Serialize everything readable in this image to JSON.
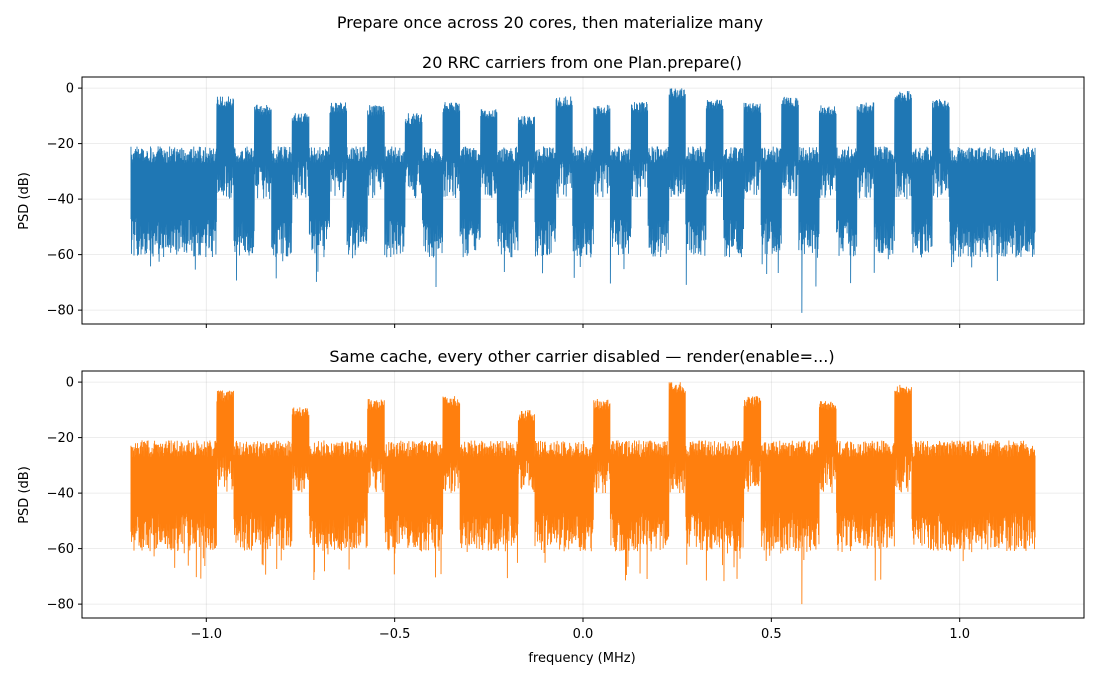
{
  "figure": {
    "suptitle": "Prepare once across 20 cores, then materialize many"
  },
  "chart_data": [
    {
      "type": "line",
      "title": "20 RRC carriers from one Plan.prepare()",
      "xlabel": "",
      "ylabel": "PSD (dB)",
      "xlim": [
        -1.33,
        1.33
      ],
      "ylim": [
        -85,
        4
      ],
      "xticks": [
        -1.0,
        -0.5,
        0.0,
        0.5,
        1.0
      ],
      "xtick_labels": [
        "",
        "",
        "",
        "",
        ""
      ],
      "yticks": [
        0,
        -20,
        -40,
        -60,
        -80
      ],
      "ytick_labels": [
        "0",
        "−20",
        "−40",
        "−60",
        "−80"
      ],
      "grid": true,
      "color": "#1f77b4",
      "series": [
        {
          "x_range_mhz": [
            -1.2,
            1.2
          ],
          "noise_floor_db_range": [
            -55,
            -23
          ],
          "carrier_centers_mhz": [
            -0.95,
            -0.85,
            -0.75,
            -0.65,
            -0.55,
            -0.45,
            -0.35,
            -0.25,
            -0.15,
            -0.05,
            0.05,
            0.15,
            0.25,
            0.35,
            0.45,
            0.55,
            0.65,
            0.75,
            0.85,
            0.95
          ],
          "carrier_peaks_db": [
            -3,
            -6,
            -9,
            -5,
            -6,
            -9,
            -5,
            -7,
            -10,
            -3,
            -6,
            -5,
            0,
            -4,
            -5,
            -3,
            -6,
            -5,
            -1,
            -4
          ],
          "carrier_width_mhz": 0.045,
          "min_dip_db": -81
        }
      ]
    },
    {
      "type": "line",
      "title": "Same cache, every other carrier disabled — render(enable=...)",
      "xlabel": "frequency (MHz)",
      "ylabel": "PSD (dB)",
      "xlim": [
        -1.33,
        1.33
      ],
      "ylim": [
        -85,
        4
      ],
      "xticks": [
        -1.0,
        -0.5,
        0.0,
        0.5,
        1.0
      ],
      "xtick_labels": [
        "−1.0",
        "−0.5",
        "0.0",
        "0.5",
        "1.0"
      ],
      "yticks": [
        0,
        -20,
        -40,
        -60,
        -80
      ],
      "ytick_labels": [
        "0",
        "−20",
        "−40",
        "−60",
        "−80"
      ],
      "grid": true,
      "color": "#ff7f0e",
      "series": [
        {
          "x_range_mhz": [
            -1.2,
            1.2
          ],
          "noise_floor_db_range": [
            -55,
            -23
          ],
          "carrier_centers_mhz": [
            -0.95,
            -0.75,
            -0.55,
            -0.35,
            -0.15,
            0.05,
            0.25,
            0.45,
            0.65,
            0.85
          ],
          "carrier_peaks_db": [
            -3,
            -9,
            -6,
            -5,
            -10,
            -6,
            0,
            -5,
            -6,
            -1
          ],
          "carrier_width_mhz": 0.045,
          "min_dip_db": -80
        }
      ]
    }
  ]
}
